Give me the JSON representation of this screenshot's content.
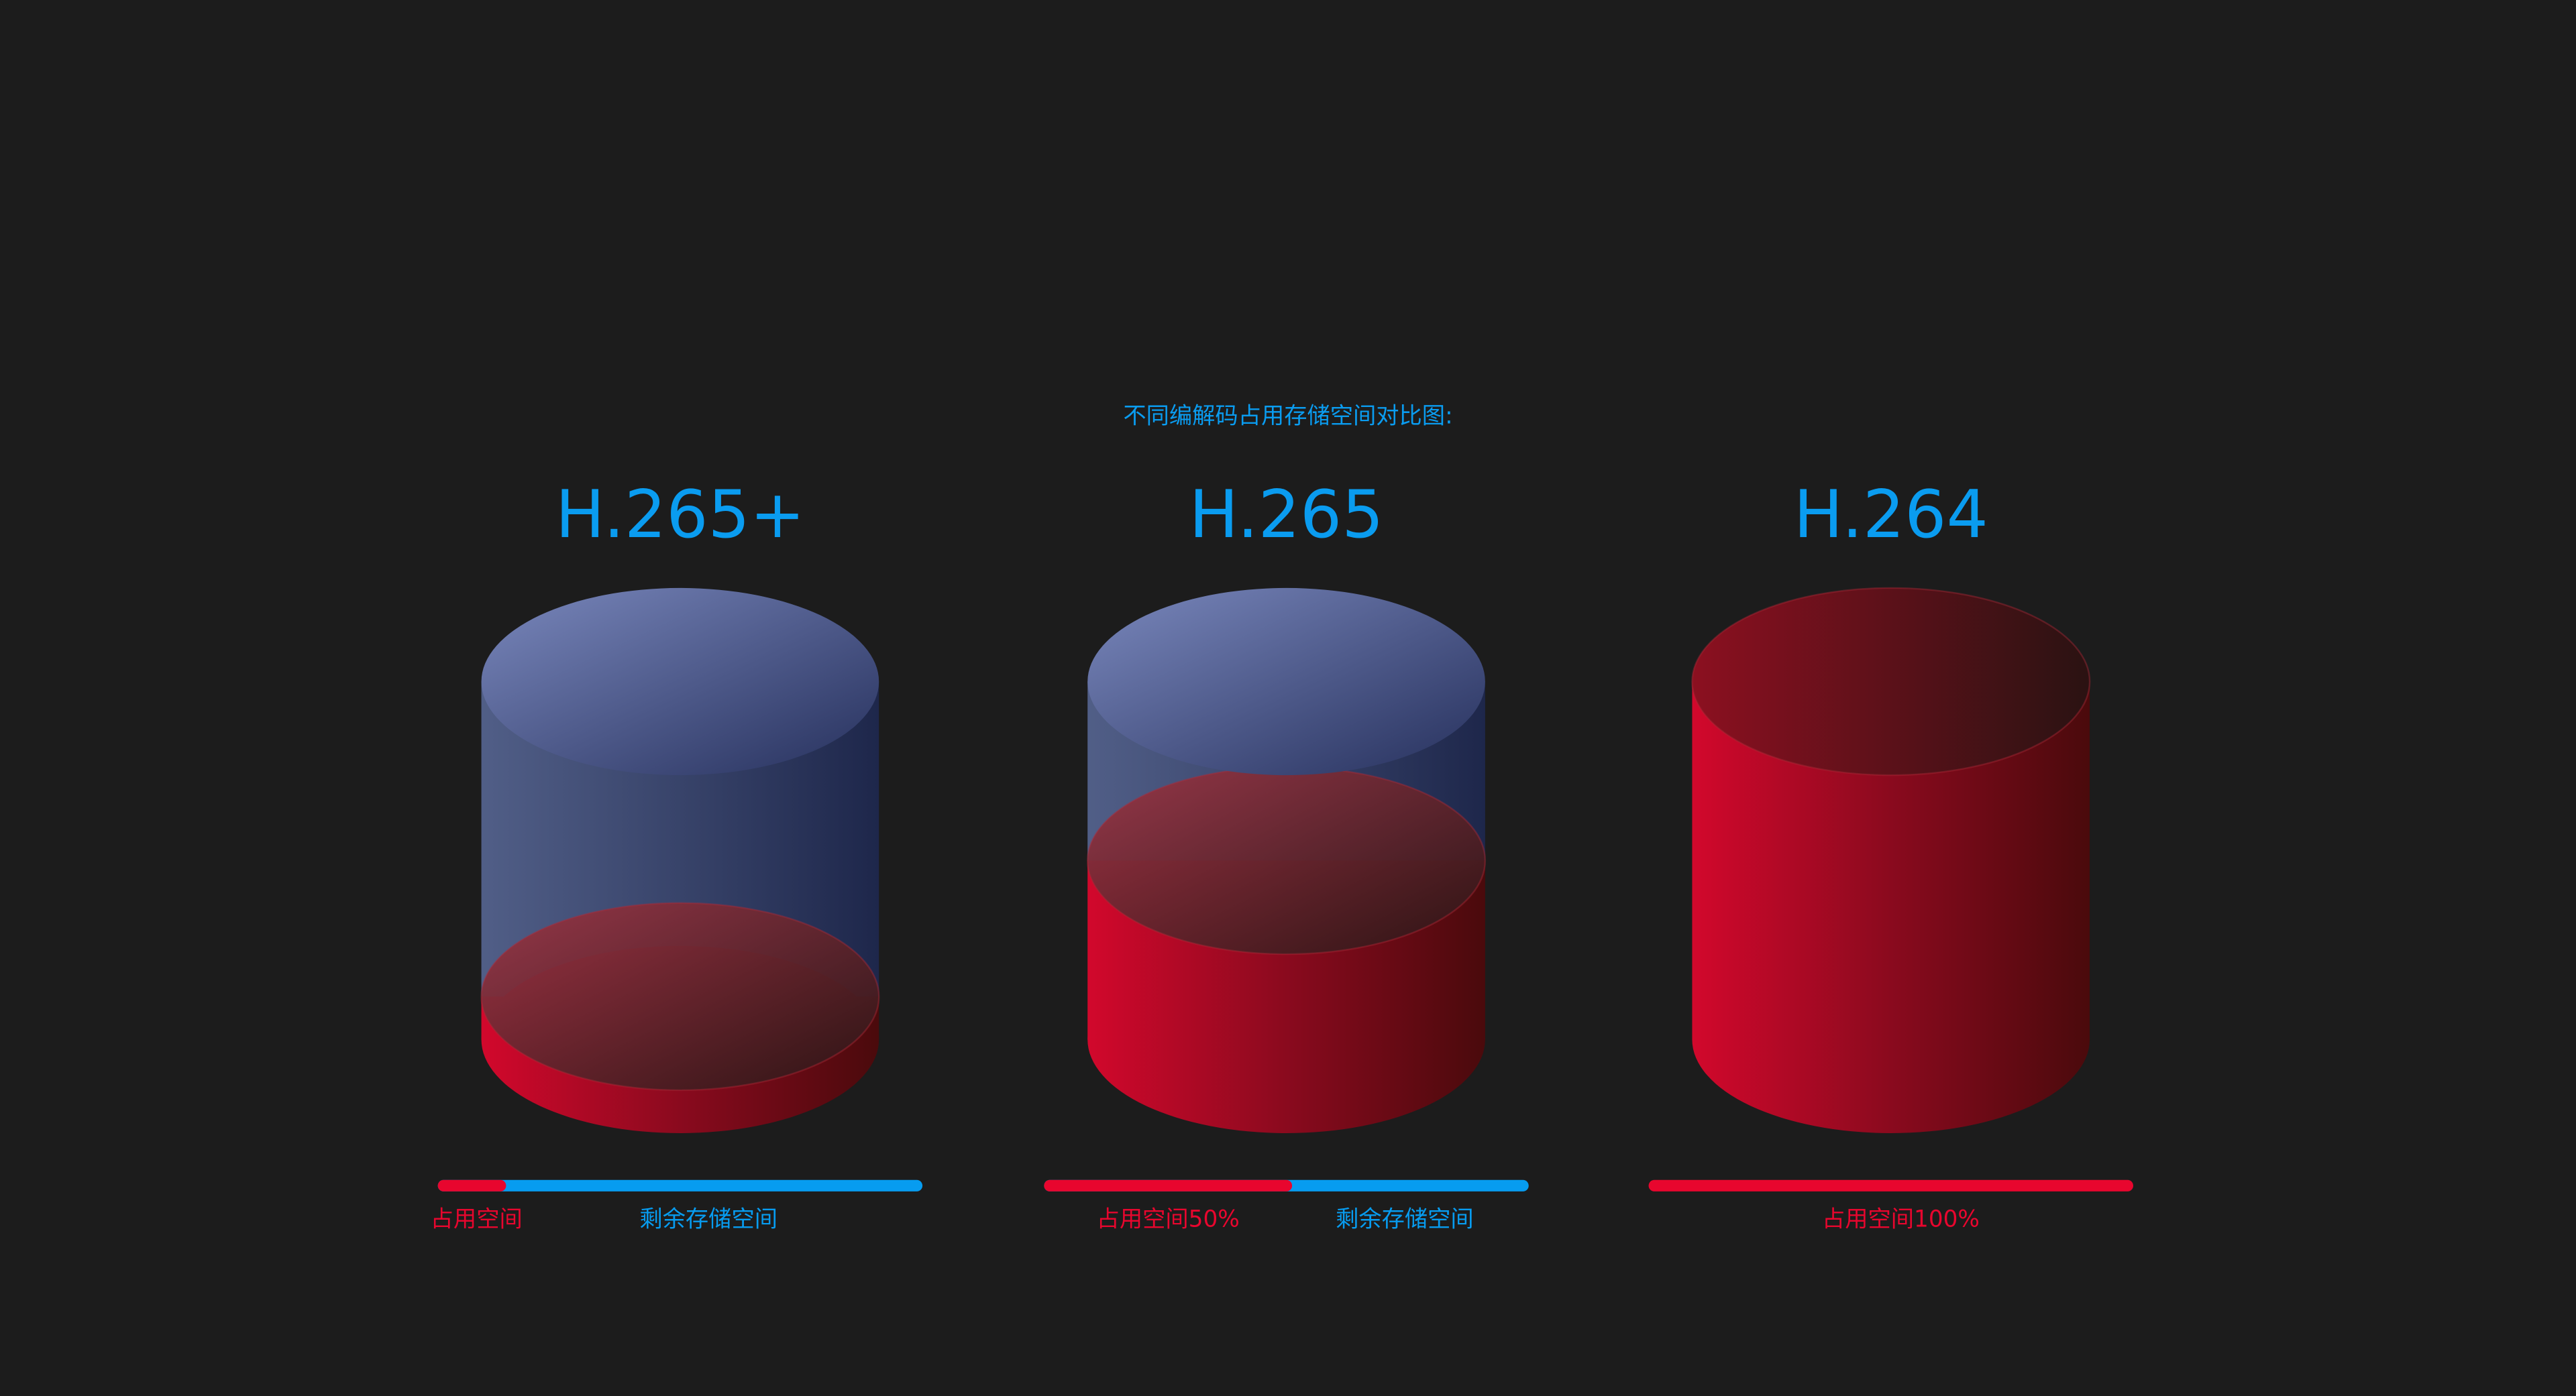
{
  "subtitle": "不同编解码占用存储空间对比图:",
  "items": [
    {
      "name": "H.265+",
      "usage": 12,
      "used_label": "占用空间",
      "free_label": "剩余存储空间"
    },
    {
      "name": "H.265",
      "usage": 50,
      "used_label": "占用空间50%",
      "free_label": "剩余存储空间"
    },
    {
      "name": "H.264",
      "usage": 100,
      "used_label": "占用空间100%"
    }
  ],
  "used_color": "#e8062e",
  "free_color": "#079cf0",
  "title_color": "#0a9cf0"
}
